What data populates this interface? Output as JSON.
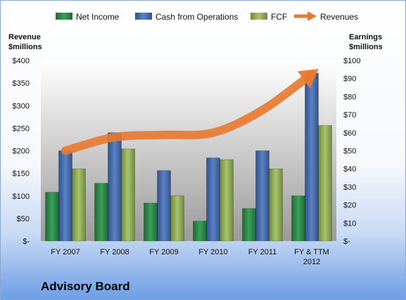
{
  "chart_data": {
    "type": "bar",
    "title": "Advisory Board",
    "categories": [
      "FY 2007",
      "FY 2008",
      "FY 2009",
      "FY 2010",
      "FY 2011",
      "FY & TTM 2012"
    ],
    "series": [
      {
        "name": "Net Income",
        "axis": "right",
        "color": "#2e8b4a",
        "values": [
          27,
          32,
          21,
          11,
          18,
          25
        ]
      },
      {
        "name": "Cash from Operations",
        "axis": "right",
        "color": "#4a6fb0",
        "values": [
          50,
          60,
          39,
          46,
          50,
          93
        ]
      },
      {
        "name": "FCF",
        "axis": "right",
        "color": "#8fac58",
        "values": [
          40,
          51,
          25,
          45,
          40,
          64
        ]
      },
      {
        "name": "Revenues",
        "axis": "left",
        "kind": "arrow-line",
        "color": "#e8792e",
        "values": [
          200,
          230,
          235,
          240,
          290,
          370
        ]
      }
    ],
    "left_axis": {
      "title_line1": "Revenue",
      "title_line2": "$millions",
      "range": [
        0,
        400
      ],
      "ticks": [
        0,
        50,
        100,
        150,
        200,
        250,
        300,
        350,
        400
      ],
      "tick_labels": [
        "$-",
        "$50",
        "$100",
        "$150",
        "$200",
        "$250",
        "$300",
        "$350",
        "$400"
      ]
    },
    "right_axis": {
      "title_line1": "Earnings",
      "title_line2": "$millions",
      "range": [
        0,
        100
      ],
      "ticks": [
        0,
        10,
        20,
        30,
        40,
        50,
        60,
        70,
        80,
        90,
        100
      ],
      "tick_labels": [
        "$-",
        "$10",
        "$20",
        "$30",
        "$40",
        "$50",
        "$60",
        "$70",
        "$80",
        "$90",
        "$100"
      ]
    },
    "legend_position": "top",
    "grid": false
  }
}
